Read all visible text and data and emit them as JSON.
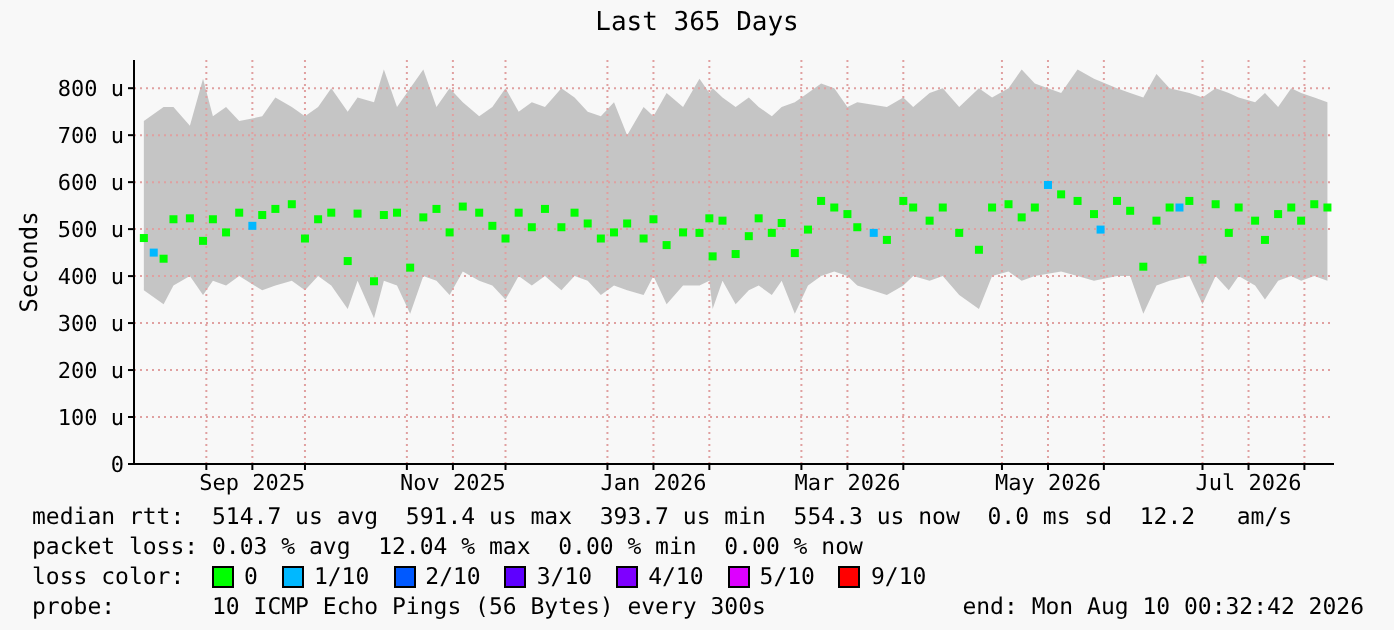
{
  "chart_data": {
    "type": "scatter",
    "title": "Last 365 Days",
    "ylabel": "Seconds",
    "legend_title": "loss color:",
    "legend": "bottom",
    "marker": "square",
    "grid": true,
    "xlim": [
      "2025-08-10",
      "2026-08-10"
    ],
    "xticks": [
      {
        "value": "2025-09-01",
        "label": null
      },
      {
        "value": "2025-09-15",
        "label": "Sep 2025"
      },
      {
        "value": "2025-10-01",
        "label": null
      },
      {
        "value": "2025-11-01",
        "label": null
      },
      {
        "value": "2025-11-15",
        "label": "Nov 2025"
      },
      {
        "value": "2025-12-01",
        "label": null
      },
      {
        "value": "2026-01-01",
        "label": null
      },
      {
        "value": "2026-01-15",
        "label": "Jan 2026"
      },
      {
        "value": "2026-02-01",
        "label": null
      },
      {
        "value": "2026-03-01",
        "label": null
      },
      {
        "value": "2026-03-15",
        "label": "Mar 2026"
      },
      {
        "value": "2026-04-01",
        "label": null
      },
      {
        "value": "2026-05-01",
        "label": null
      },
      {
        "value": "2026-05-15",
        "label": "May 2026"
      },
      {
        "value": "2026-06-01",
        "label": null
      },
      {
        "value": "2026-07-01",
        "label": null
      },
      {
        "value": "2026-07-15",
        "label": "Jul 2026"
      },
      {
        "value": "2026-08-01",
        "label": null
      }
    ],
    "ylim": [
      0,
      860
    ],
    "yticks": [
      0,
      {
        "value": 100,
        "label": "100 u"
      },
      {
        "value": 200,
        "label": "200 u"
      },
      {
        "value": 300,
        "label": "300 u"
      },
      {
        "value": 400,
        "label": "400 u"
      },
      {
        "value": 500,
        "label": "500 u"
      },
      {
        "value": 600,
        "label": "600 u"
      },
      {
        "value": 700,
        "label": "700 u"
      },
      {
        "value": 800,
        "label": "800 u"
      }
    ],
    "series": [
      {
        "name": "0",
        "color": "#00ff00",
        "x": [
          "2025-08-13",
          "2025-08-19",
          "2025-08-22",
          "2025-08-27",
          "2025-08-31",
          "2025-09-03",
          "2025-09-07",
          "2025-09-11",
          "2025-09-18",
          "2025-09-22",
          "2025-09-27",
          "2025-10-01",
          "2025-10-05",
          "2025-10-09",
          "2025-10-14",
          "2025-10-17",
          "2025-10-22",
          "2025-10-25",
          "2025-10-29",
          "2025-11-02",
          "2025-11-06",
          "2025-11-10",
          "2025-11-14",
          "2025-11-18",
          "2025-11-23",
          "2025-11-27",
          "2025-12-01",
          "2025-12-05",
          "2025-12-09",
          "2025-12-13",
          "2025-12-18",
          "2025-12-22",
          "2025-12-26",
          "2025-12-30",
          "2026-01-03",
          "2026-01-07",
          "2026-01-12",
          "2026-01-15",
          "2026-01-19",
          "2026-01-24",
          "2026-01-29",
          "2026-02-01",
          "2026-02-02",
          "2026-02-05",
          "2026-02-09",
          "2026-02-13",
          "2026-02-16",
          "2026-02-20",
          "2026-02-23",
          "2026-02-27",
          "2026-03-03",
          "2026-03-07",
          "2026-03-11",
          "2026-03-15",
          "2026-03-18",
          "2026-03-27",
          "2026-04-01",
          "2026-04-04",
          "2026-04-09",
          "2026-04-13",
          "2026-04-18",
          "2026-04-24",
          "2026-04-28",
          "2026-05-03",
          "2026-05-07",
          "2026-05-11",
          "2026-05-19",
          "2026-05-24",
          "2026-05-29",
          "2026-06-05",
          "2026-06-09",
          "2026-06-13",
          "2026-06-17",
          "2026-06-21",
          "2026-06-27",
          "2026-07-01",
          "2026-07-05",
          "2026-07-09",
          "2026-07-12",
          "2026-07-17",
          "2026-07-20",
          "2026-07-24",
          "2026-07-28",
          "2026-07-31",
          "2026-08-04",
          "2026-08-08"
        ],
        "values": [
          481,
          437,
          521,
          523,
          475,
          521,
          493,
          535,
          530,
          543,
          553,
          480,
          521,
          535,
          432,
          533,
          389,
          530,
          535,
          418,
          525,
          543,
          493,
          548,
          535,
          507,
          480,
          535,
          504,
          543,
          504,
          535,
          512,
          480,
          493,
          512,
          480,
          521,
          466,
          493,
          492,
          523,
          442,
          518,
          447,
          485,
          523,
          492,
          513,
          449,
          499,
          560,
          546,
          532,
          504,
          477,
          560,
          546,
          518,
          546,
          492,
          456,
          546,
          553,
          525,
          546,
          574,
          560,
          532,
          560,
          539,
          420,
          518,
          546,
          560,
          435,
          553,
          492,
          546,
          518,
          477,
          532,
          546,
          518,
          553,
          546
        ],
        "upper": [
          730,
          760,
          760,
          720,
          820,
          740,
          760,
          730,
          740,
          780,
          760,
          740,
          760,
          800,
          750,
          780,
          770,
          840,
          760,
          800,
          840,
          760,
          800,
          770,
          740,
          760,
          800,
          750,
          770,
          760,
          800,
          780,
          750,
          740,
          770,
          700,
          760,
          740,
          790,
          760,
          820,
          790,
          800,
          780,
          760,
          780,
          760,
          740,
          760,
          770,
          790,
          810,
          800,
          760,
          770,
          760,
          780,
          760,
          790,
          800,
          760,
          800,
          780,
          800,
          840,
          810,
          790,
          840,
          820,
          800,
          790,
          780,
          830,
          800,
          790,
          780,
          800,
          790,
          780,
          770,
          790,
          760,
          800,
          790,
          780,
          770
        ],
        "lower": [
          370,
          340,
          380,
          400,
          360,
          390,
          380,
          400,
          370,
          380,
          390,
          370,
          400,
          380,
          330,
          390,
          310,
          390,
          380,
          320,
          400,
          390,
          360,
          410,
          390,
          380,
          350,
          400,
          380,
          400,
          370,
          400,
          390,
          360,
          380,
          370,
          360,
          400,
          340,
          380,
          380,
          390,
          330,
          390,
          340,
          370,
          380,
          360,
          390,
          320,
          380,
          400,
          410,
          400,
          380,
          360,
          380,
          400,
          390,
          400,
          360,
          330,
          400,
          410,
          390,
          400,
          410,
          400,
          390,
          400,
          400,
          320,
          380,
          390,
          400,
          340,
          400,
          370,
          400,
          380,
          350,
          390,
          400,
          390,
          400,
          390
        ]
      },
      {
        "name": "1/10",
        "color": "#00b8ff",
        "x": [
          "2025-08-16",
          "2025-09-15",
          "2026-03-23",
          "2026-05-15",
          "2026-05-31",
          "2026-06-24"
        ],
        "values": [
          450,
          507,
          492,
          594,
          499,
          546
        ]
      },
      {
        "name": "2/10",
        "color": "#0059ff"
      },
      {
        "name": "3/10",
        "color": "#5e00ff"
      },
      {
        "name": "4/10",
        "color": "#7e00ff"
      },
      {
        "name": "5/10",
        "color": "#dd00ff"
      },
      {
        "name": "9/10",
        "color": "#ff0000"
      }
    ],
    "annotations": [
      "median rtt:  514.7 us avg  591.4 us max  393.7 us min  554.3 us now  0.0 ms sd  12.2   am/s",
      "packet loss: 0.03 % avg  12.04 % max  0.00 % min  0.00 % now",
      "probe:       10 ICMP Echo Pings (56 Bytes) every 300s",
      "end: Mon Aug 10 00:32:42 2026"
    ]
  }
}
